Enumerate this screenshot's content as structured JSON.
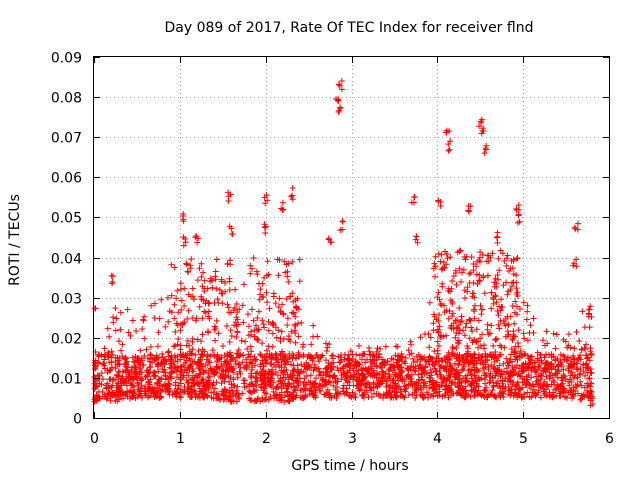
{
  "chart_data": {
    "type": "scatter",
    "title": "Day 089 of 2017, Rate Of TEC Index for receiver flnd",
    "xlabel": "GPS time / hours",
    "ylabel": "ROTI / TECUs",
    "xlim": [
      0,
      6
    ],
    "ylim": [
      0,
      0.09
    ],
    "xticks": [
      "0",
      "1",
      "2",
      "3",
      "4",
      "5",
      "6"
    ],
    "yticks": [
      "0",
      "0.01",
      "0.02",
      "0.03",
      "0.04",
      "0.05",
      "0.06",
      "0.07",
      "0.08",
      "0.09"
    ],
    "grid": true,
    "marker": "+",
    "color": "#ff0000",
    "series": [
      {
        "name": "ROTI",
        "note": "dense scatter (~7000 points); envelope of typical values and notable outliers read from the figure",
        "envelope": [
          {
            "x": 0.0,
            "low": 0.004,
            "high": 0.016
          },
          {
            "x": 0.25,
            "low": 0.004,
            "high": 0.03
          },
          {
            "x": 0.5,
            "low": 0.005,
            "high": 0.025
          },
          {
            "x": 0.75,
            "low": 0.005,
            "high": 0.03
          },
          {
            "x": 1.0,
            "low": 0.005,
            "high": 0.035
          },
          {
            "x": 1.25,
            "low": 0.005,
            "high": 0.03
          },
          {
            "x": 1.5,
            "low": 0.004,
            "high": 0.035
          },
          {
            "x": 1.75,
            "low": 0.004,
            "high": 0.033
          },
          {
            "x": 2.0,
            "low": 0.004,
            "high": 0.03
          },
          {
            "x": 2.25,
            "low": 0.004,
            "high": 0.03
          },
          {
            "x": 2.5,
            "low": 0.005,
            "high": 0.025
          },
          {
            "x": 2.75,
            "low": 0.005,
            "high": 0.02
          },
          {
            "x": 3.0,
            "low": 0.005,
            "high": 0.018
          },
          {
            "x": 3.25,
            "low": 0.005,
            "high": 0.018
          },
          {
            "x": 3.5,
            "low": 0.005,
            "high": 0.018
          },
          {
            "x": 3.75,
            "low": 0.005,
            "high": 0.02
          },
          {
            "x": 4.0,
            "low": 0.005,
            "high": 0.035
          },
          {
            "x": 4.25,
            "low": 0.005,
            "high": 0.04
          },
          {
            "x": 4.5,
            "low": 0.005,
            "high": 0.035
          },
          {
            "x": 4.75,
            "low": 0.005,
            "high": 0.035
          },
          {
            "x": 5.0,
            "low": 0.005,
            "high": 0.03
          },
          {
            "x": 5.25,
            "low": 0.005,
            "high": 0.022
          },
          {
            "x": 5.5,
            "low": 0.005,
            "high": 0.02
          },
          {
            "x": 5.75,
            "low": 0.004,
            "high": 0.03
          }
        ],
        "highlights": [
          {
            "x": 0.0,
            "y": 0.026
          },
          {
            "x": 0.22,
            "y": 0.034
          },
          {
            "x": 1.05,
            "y": 0.05
          },
          {
            "x": 1.05,
            "y": 0.044
          },
          {
            "x": 1.2,
            "y": 0.045
          },
          {
            "x": 1.58,
            "y": 0.055
          },
          {
            "x": 1.6,
            "y": 0.047
          },
          {
            "x": 2.0,
            "y": 0.055
          },
          {
            "x": 2.0,
            "y": 0.047
          },
          {
            "x": 2.2,
            "y": 0.053
          },
          {
            "x": 2.3,
            "y": 0.056
          },
          {
            "x": 2.75,
            "y": 0.045
          },
          {
            "x": 2.83,
            "y": 0.08
          },
          {
            "x": 2.85,
            "y": 0.077
          },
          {
            "x": 2.87,
            "y": 0.083
          },
          {
            "x": 2.88,
            "y": 0.048
          },
          {
            "x": 3.72,
            "y": 0.054
          },
          {
            "x": 3.75,
            "y": 0.044
          },
          {
            "x": 4.03,
            "y": 0.053
          },
          {
            "x": 4.12,
            "y": 0.071
          },
          {
            "x": 4.13,
            "y": 0.068
          },
          {
            "x": 4.38,
            "y": 0.052
          },
          {
            "x": 4.5,
            "y": 0.074
          },
          {
            "x": 4.52,
            "y": 0.072
          },
          {
            "x": 4.55,
            "y": 0.067
          },
          {
            "x": 4.7,
            "y": 0.045
          },
          {
            "x": 4.93,
            "y": 0.053
          },
          {
            "x": 4.95,
            "y": 0.05
          },
          {
            "x": 5.62,
            "y": 0.047
          },
          {
            "x": 5.6,
            "y": 0.039
          },
          {
            "x": 5.78,
            "y": 0.027
          },
          {
            "x": 5.8,
            "y": 0.004
          }
        ]
      }
    ]
  }
}
